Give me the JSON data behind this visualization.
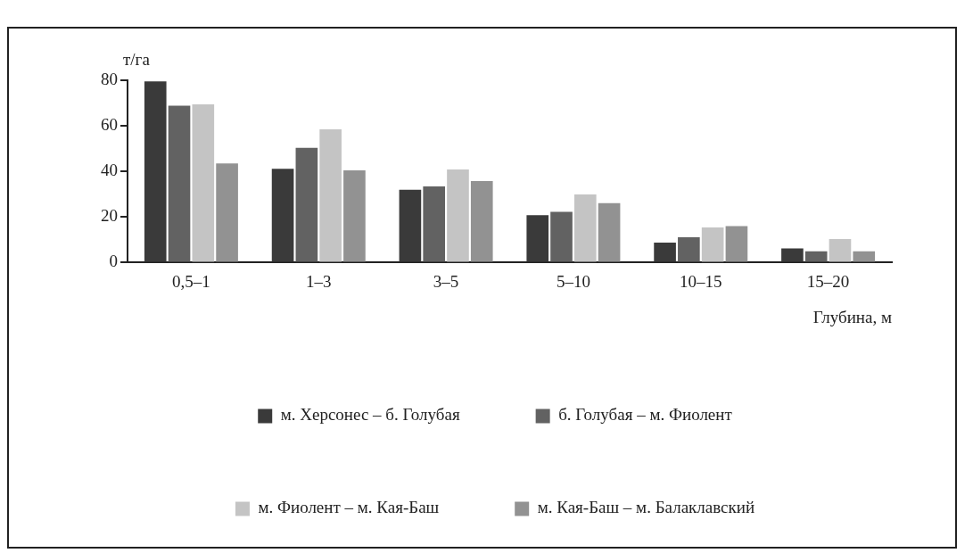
{
  "chart_data": {
    "type": "bar",
    "ylabel": "т/га",
    "xlabel": "Глубина, м",
    "categories": [
      "0,5–1",
      "1–3",
      "3–5",
      "5–10",
      "10–15",
      "15–20"
    ],
    "series": [
      {
        "name": "м. Херсонес – б. Голубая",
        "color": "#3a3a3a",
        "values": [
          79.5,
          41.2,
          32,
          20.8,
          8.8,
          6.2
        ]
      },
      {
        "name": "б. Голубая – м. Фиолент",
        "color": "#626262",
        "values": [
          68.8,
          50.4,
          33.4,
          22.3,
          11.1,
          5
        ]
      },
      {
        "name": "м. Фиолент – м. Кая-Баш",
        "color": "#c4c4c4",
        "values": [
          69.4,
          58.5,
          40.9,
          29.9,
          15.4,
          10.3
        ]
      },
      {
        "name": "м. Кая-Баш – м. Балаклавский",
        "color": "#929292",
        "values": [
          43.5,
          40.5,
          35.8,
          26.1,
          16,
          5
        ]
      }
    ],
    "ylim": [
      0,
      80
    ],
    "yticks": [
      0,
      20,
      40,
      60,
      80
    ],
    "grid": false,
    "legend": "bottom"
  }
}
